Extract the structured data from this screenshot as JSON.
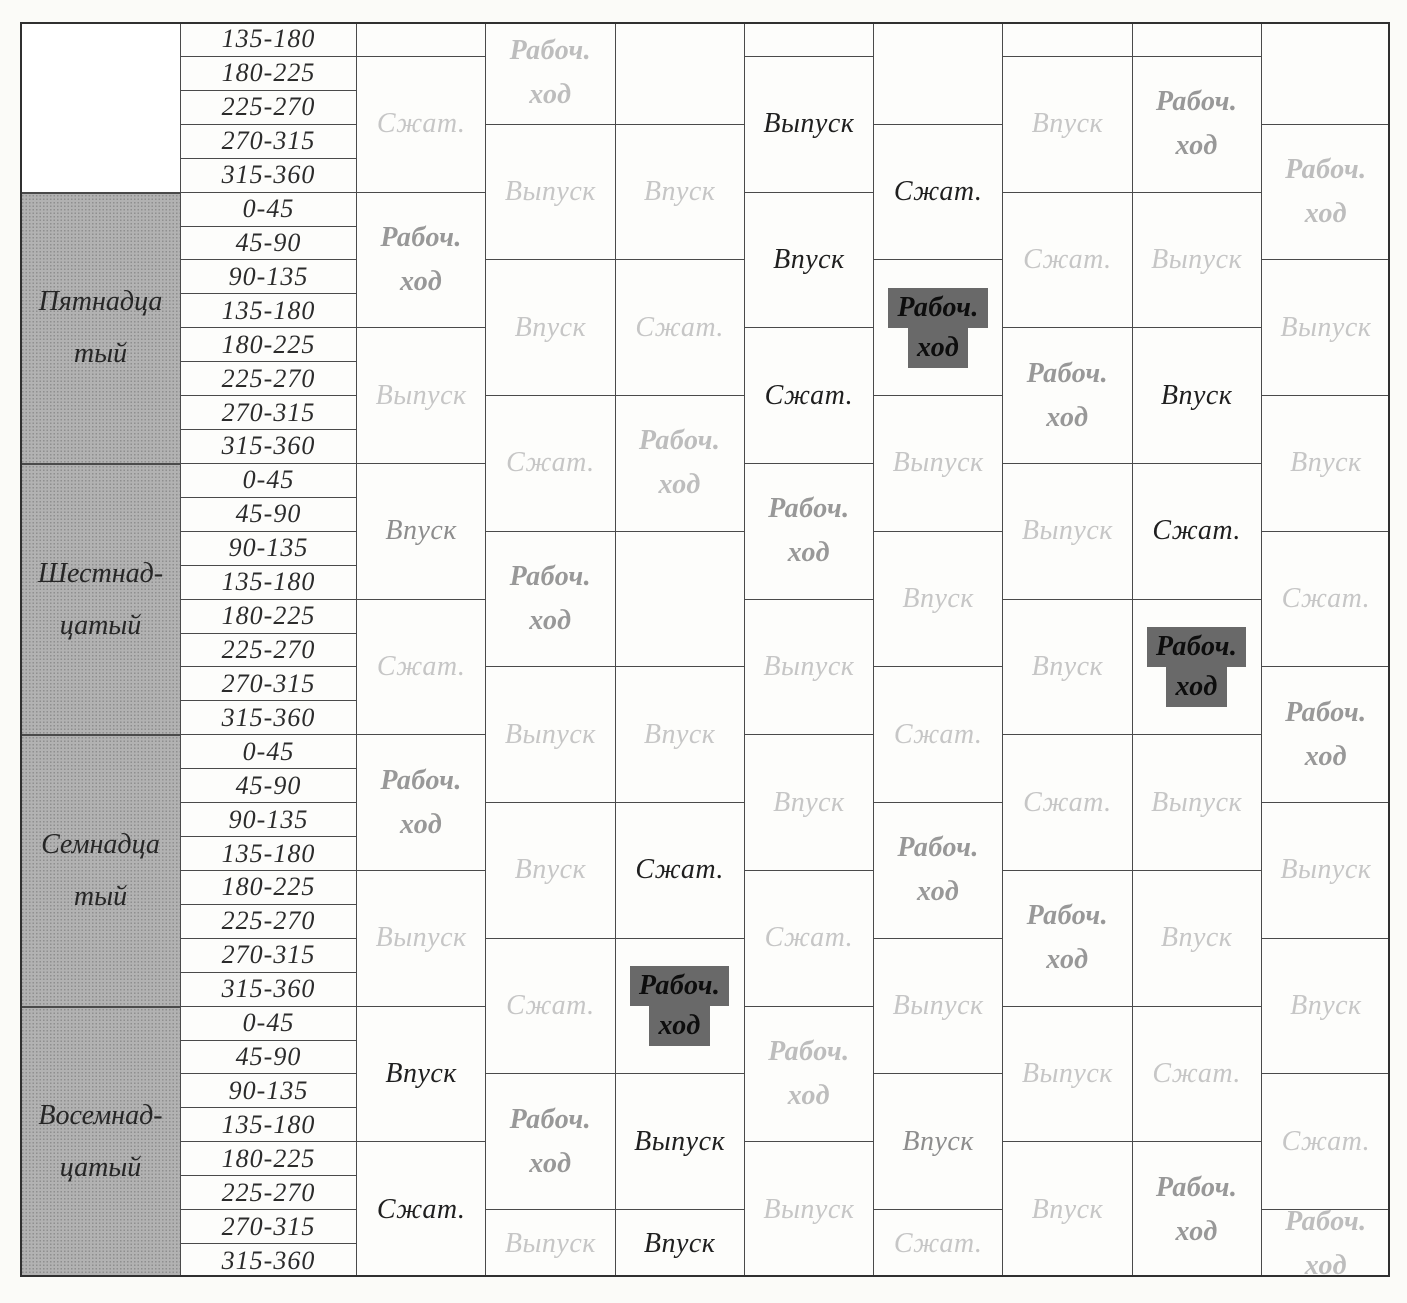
{
  "palette": {
    "page_bg": "#fbfbf8",
    "line": "#4a4a4a",
    "frame": "#303030",
    "group_bg": "#b2b2b2",
    "tone_black": "#1f1f1f",
    "tone_gray": "#8d8d8d",
    "tone_gray_bold": "#989898",
    "tone_faint": "#c6c6c6",
    "tone_faint_bold": "#bdbdbd",
    "hl_bg": "#696969",
    "hl_text": "#0d0d0d"
  },
  "angle_groups": [
    {
      "label_lines": [],
      "rows": [
        "135-180",
        "180-225",
        "225-270",
        "270-315",
        "315-360"
      ]
    },
    {
      "label_lines": [
        "Пятнадца",
        "тый"
      ],
      "rows": [
        "0-45",
        "45-90",
        "90-135",
        "135-180",
        "180-225",
        "225-270",
        "270-315",
        "315-360"
      ]
    },
    {
      "label_lines": [
        "Шестнад-",
        "цатый"
      ],
      "rows": [
        "0-45",
        "45-90",
        "90-135",
        "135-180",
        "180-225",
        "225-270",
        "270-315",
        "315-360"
      ]
    },
    {
      "label_lines": [
        "Семнадца",
        "тый"
      ],
      "rows": [
        "0-45",
        "45-90",
        "90-135",
        "135-180",
        "180-225",
        "225-270",
        "270-315",
        "315-360"
      ]
    },
    {
      "label_lines": [
        "Восемнад-",
        "цатый"
      ],
      "rows": [
        "0-45",
        "45-90",
        "90-135",
        "135-180",
        "180-225",
        "225-270",
        "270-315",
        "315-360"
      ]
    }
  ],
  "cylinders": [
    {
      "name": "cylinder-1",
      "cells": [
        {
          "r": 0,
          "n": 1,
          "tone": "blank",
          "lines": []
        },
        {
          "r": 1,
          "n": 4,
          "tone": "faint",
          "lines": [
            "Сжат."
          ]
        },
        {
          "r": 5,
          "n": 4,
          "tone": "gray_bold",
          "lines": [
            "Рабоч.",
            "ход"
          ]
        },
        {
          "r": 9,
          "n": 4,
          "tone": "faint",
          "lines": [
            "Выпуск"
          ]
        },
        {
          "r": 13,
          "n": 4,
          "tone": "gray",
          "lines": [
            "Впуск"
          ]
        },
        {
          "r": 17,
          "n": 4,
          "tone": "faint",
          "lines": [
            "Сжат."
          ]
        },
        {
          "r": 21,
          "n": 4,
          "tone": "gray_bold",
          "lines": [
            "Рабоч.",
            "ход"
          ]
        },
        {
          "r": 25,
          "n": 4,
          "tone": "faint",
          "lines": [
            "Выпуск"
          ]
        },
        {
          "r": 29,
          "n": 4,
          "tone": "black",
          "lines": [
            "Впуск"
          ]
        },
        {
          "r": 33,
          "n": 4,
          "tone": "black",
          "lines": [
            "Сжат."
          ]
        }
      ]
    },
    {
      "name": "cylinder-2",
      "cells": [
        {
          "r": 0,
          "n": 3,
          "tone": "faint_bold",
          "lines": [
            "Рабоч.",
            "ход"
          ]
        },
        {
          "r": 3,
          "n": 4,
          "tone": "faint",
          "lines": [
            "Выпуск"
          ]
        },
        {
          "r": 7,
          "n": 4,
          "tone": "faint",
          "lines": [
            "Впуск"
          ]
        },
        {
          "r": 11,
          "n": 4,
          "tone": "faint",
          "lines": [
            "Сжат."
          ]
        },
        {
          "r": 15,
          "n": 4,
          "tone": "gray_bold",
          "lines": [
            "Рабоч.",
            "ход"
          ]
        },
        {
          "r": 19,
          "n": 4,
          "tone": "faint",
          "lines": [
            "Выпуск"
          ]
        },
        {
          "r": 23,
          "n": 4,
          "tone": "faint",
          "lines": [
            "Впуск"
          ]
        },
        {
          "r": 27,
          "n": 4,
          "tone": "faint",
          "lines": [
            "Сжат."
          ]
        },
        {
          "r": 31,
          "n": 4,
          "tone": "gray_bold",
          "lines": [
            "Рабоч.",
            "ход"
          ]
        },
        {
          "r": 35,
          "n": 2,
          "tone": "faint",
          "lines": [
            "Выпуск"
          ]
        }
      ]
    },
    {
      "name": "cylinder-3",
      "cells": [
        {
          "r": 0,
          "n": 3,
          "tone": "blank",
          "lines": []
        },
        {
          "r": 3,
          "n": 4,
          "tone": "faint",
          "lines": [
            "Впуск"
          ]
        },
        {
          "r": 7,
          "n": 4,
          "tone": "faint",
          "lines": [
            "Сжат."
          ]
        },
        {
          "r": 11,
          "n": 4,
          "tone": "faint_bold",
          "lines": [
            "Рабоч.",
            "ход"
          ]
        },
        {
          "r": 15,
          "n": 4,
          "tone": "blank",
          "lines": []
        },
        {
          "r": 19,
          "n": 4,
          "tone": "faint",
          "lines": [
            "Впуск"
          ]
        },
        {
          "r": 23,
          "n": 4,
          "tone": "black",
          "lines": [
            "Сжат."
          ]
        },
        {
          "r": 27,
          "n": 4,
          "tone": "highlight",
          "lines": [
            "Рабоч.",
            "ход"
          ]
        },
        {
          "r": 31,
          "n": 4,
          "tone": "black",
          "lines": [
            "Выпуск"
          ]
        },
        {
          "r": 35,
          "n": 2,
          "tone": "black",
          "lines": [
            "Впуск"
          ]
        }
      ]
    },
    {
      "name": "cylinder-4",
      "cells": [
        {
          "r": 0,
          "n": 1,
          "tone": "blank",
          "lines": []
        },
        {
          "r": 1,
          "n": 4,
          "tone": "black",
          "lines": [
            "Выпуск"
          ]
        },
        {
          "r": 5,
          "n": 4,
          "tone": "black",
          "lines": [
            "Впуск"
          ]
        },
        {
          "r": 9,
          "n": 4,
          "tone": "black",
          "lines": [
            "Сжат."
          ]
        },
        {
          "r": 13,
          "n": 4,
          "tone": "gray_bold",
          "lines": [
            "Рабоч.",
            "ход"
          ]
        },
        {
          "r": 17,
          "n": 4,
          "tone": "faint",
          "lines": [
            "Выпуск"
          ]
        },
        {
          "r": 21,
          "n": 4,
          "tone": "faint",
          "lines": [
            "Впуск"
          ]
        },
        {
          "r": 25,
          "n": 4,
          "tone": "faint",
          "lines": [
            "Сжат."
          ]
        },
        {
          "r": 29,
          "n": 4,
          "tone": "faint_bold",
          "lines": [
            "Рабоч.",
            "ход"
          ]
        },
        {
          "r": 33,
          "n": 4,
          "tone": "faint",
          "lines": [
            "Выпуск"
          ]
        }
      ]
    },
    {
      "name": "cylinder-5",
      "cells": [
        {
          "r": 0,
          "n": 3,
          "tone": "blank",
          "lines": []
        },
        {
          "r": 3,
          "n": 4,
          "tone": "black",
          "lines": [
            "Сжат."
          ]
        },
        {
          "r": 7,
          "n": 4,
          "tone": "highlight",
          "lines": [
            "Рабоч.",
            "ход"
          ]
        },
        {
          "r": 11,
          "n": 4,
          "tone": "faint",
          "lines": [
            "Выпуск"
          ]
        },
        {
          "r": 15,
          "n": 4,
          "tone": "faint",
          "lines": [
            "Впуск"
          ]
        },
        {
          "r": 19,
          "n": 4,
          "tone": "faint",
          "lines": [
            "Сжат."
          ]
        },
        {
          "r": 23,
          "n": 4,
          "tone": "gray_bold",
          "lines": [
            "Рабоч.",
            "ход"
          ]
        },
        {
          "r": 27,
          "n": 4,
          "tone": "faint",
          "lines": [
            "Выпуск"
          ]
        },
        {
          "r": 31,
          "n": 4,
          "tone": "gray",
          "lines": [
            "Впуск"
          ]
        },
        {
          "r": 35,
          "n": 2,
          "tone": "faint",
          "lines": [
            "Сжат."
          ]
        }
      ]
    },
    {
      "name": "cylinder-6",
      "cells": [
        {
          "r": 0,
          "n": 1,
          "tone": "blank",
          "lines": []
        },
        {
          "r": 1,
          "n": 4,
          "tone": "faint",
          "lines": [
            "Впуск"
          ]
        },
        {
          "r": 5,
          "n": 4,
          "tone": "faint",
          "lines": [
            "Сжат."
          ]
        },
        {
          "r": 9,
          "n": 4,
          "tone": "gray_bold",
          "lines": [
            "Рабоч.",
            "ход"
          ]
        },
        {
          "r": 13,
          "n": 4,
          "tone": "faint",
          "lines": [
            "Выпуск"
          ]
        },
        {
          "r": 17,
          "n": 4,
          "tone": "faint",
          "lines": [
            "Впуск"
          ]
        },
        {
          "r": 21,
          "n": 4,
          "tone": "faint",
          "lines": [
            "Сжат."
          ]
        },
        {
          "r": 25,
          "n": 4,
          "tone": "gray_bold",
          "lines": [
            "Рабоч.",
            "ход"
          ]
        },
        {
          "r": 29,
          "n": 4,
          "tone": "faint",
          "lines": [
            "Выпуск"
          ]
        },
        {
          "r": 33,
          "n": 4,
          "tone": "faint",
          "lines": [
            "Впуск"
          ]
        }
      ]
    },
    {
      "name": "cylinder-7",
      "cells": [
        {
          "r": 0,
          "n": 1,
          "tone": "blank",
          "lines": []
        },
        {
          "r": 1,
          "n": 4,
          "tone": "gray_bold",
          "lines": [
            "Рабоч.",
            "ход"
          ]
        },
        {
          "r": 5,
          "n": 4,
          "tone": "faint",
          "lines": [
            "Выпуск"
          ]
        },
        {
          "r": 9,
          "n": 4,
          "tone": "black",
          "lines": [
            "Впуск"
          ]
        },
        {
          "r": 13,
          "n": 4,
          "tone": "black",
          "lines": [
            "Сжат."
          ]
        },
        {
          "r": 17,
          "n": 4,
          "tone": "highlight",
          "lines": [
            "Рабоч.",
            "ход"
          ]
        },
        {
          "r": 21,
          "n": 4,
          "tone": "faint",
          "lines": [
            "Выпуск"
          ]
        },
        {
          "r": 25,
          "n": 4,
          "tone": "faint",
          "lines": [
            "Впуск"
          ]
        },
        {
          "r": 29,
          "n": 4,
          "tone": "faint",
          "lines": [
            "Сжат."
          ]
        },
        {
          "r": 33,
          "n": 4,
          "tone": "gray_bold",
          "lines": [
            "Рабоч.",
            "ход"
          ]
        }
      ]
    },
    {
      "name": "cylinder-8",
      "cells": [
        {
          "r": 0,
          "n": 3,
          "tone": "blank",
          "lines": []
        },
        {
          "r": 3,
          "n": 4,
          "tone": "faint_bold",
          "lines": [
            "Рабоч.",
            "ход"
          ]
        },
        {
          "r": 7,
          "n": 4,
          "tone": "faint",
          "lines": [
            "Выпуск"
          ]
        },
        {
          "r": 11,
          "n": 4,
          "tone": "faint",
          "lines": [
            "Впуск"
          ]
        },
        {
          "r": 15,
          "n": 4,
          "tone": "faint",
          "lines": [
            "Сжат."
          ]
        },
        {
          "r": 19,
          "n": 4,
          "tone": "gray_bold",
          "lines": [
            "Рабоч.",
            "ход"
          ]
        },
        {
          "r": 23,
          "n": 4,
          "tone": "faint",
          "lines": [
            "Выпуск"
          ]
        },
        {
          "r": 27,
          "n": 4,
          "tone": "faint",
          "lines": [
            "Впуск"
          ]
        },
        {
          "r": 31,
          "n": 4,
          "tone": "faint",
          "lines": [
            "Сжат."
          ]
        },
        {
          "r": 35,
          "n": 2,
          "tone": "faint_bold",
          "lines": [
            "Рабоч.",
            "ход"
          ]
        }
      ]
    }
  ]
}
